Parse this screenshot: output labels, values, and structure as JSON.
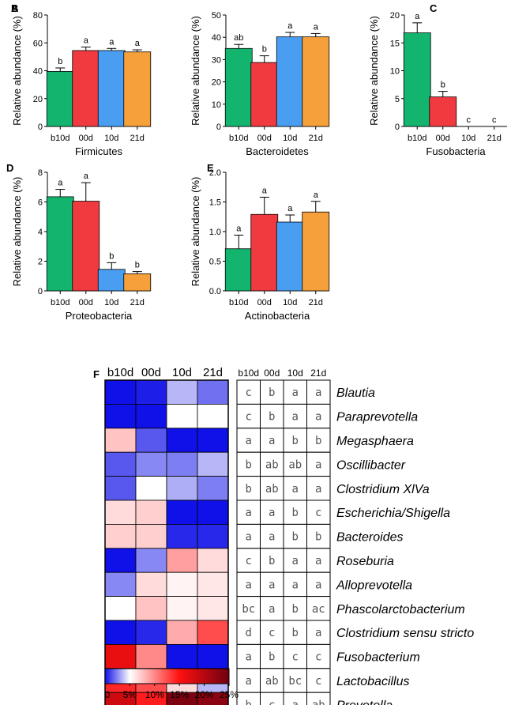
{
  "colors": {
    "b10d": "#13b56e",
    "00d": "#f03a40",
    "10d": "#4a9ef2",
    "21d": "#f5a03a",
    "heat_low": "#1010e8",
    "heat_mid": "#ffffff",
    "heat_high": "#6e0010"
  },
  "chart_data": [
    {
      "type": "bar",
      "panel": "A",
      "title": "",
      "xlabel": "Firmicutes",
      "ylabel": "Relative abundance (%)",
      "categories": [
        "b10d",
        "00d",
        "10d",
        "21d"
      ],
      "values": [
        39.5,
        54.5,
        54.5,
        53.5
      ],
      "errors": [
        2.5,
        2.5,
        1.5,
        1.5
      ],
      "letters": [
        "b",
        "a",
        "a",
        "a"
      ],
      "ylim": [
        0,
        80
      ],
      "yticks": [
        "0",
        "20",
        "40",
        "60",
        "80"
      ]
    },
    {
      "type": "bar",
      "panel": "B",
      "title": "",
      "xlabel": "Bacteroidetes",
      "ylabel": "Relative abundance (%)",
      "categories": [
        "b10d",
        "00d",
        "10d",
        "21d"
      ],
      "values": [
        35,
        28.7,
        40.2,
        40.2
      ],
      "errors": [
        1.8,
        3.0,
        2.0,
        1.5
      ],
      "letters": [
        "ab",
        "b",
        "a",
        "a"
      ],
      "ylim": [
        0,
        50
      ],
      "yticks": [
        "0",
        "10",
        "20",
        "30",
        "40",
        "50"
      ]
    },
    {
      "type": "bar",
      "panel": "C",
      "title": "",
      "xlabel": "Fusobacteria",
      "ylabel": "Relative abundance (%)",
      "categories": [
        "b10d",
        "00d",
        "10d",
        "21d"
      ],
      "values": [
        16.8,
        5.3,
        0,
        0
      ],
      "errors": [
        1.8,
        1.0,
        0,
        0
      ],
      "letters": [
        "a",
        "b",
        "c",
        "c"
      ],
      "ylim": [
        0,
        20
      ],
      "yticks": [
        "0",
        "5",
        "10",
        "15",
        "20"
      ]
    },
    {
      "type": "bar",
      "panel": "D",
      "title": "",
      "xlabel": "Proteobacteria",
      "ylabel": "Relative abundance (%)",
      "categories": [
        "b10d",
        "00d",
        "10d",
        "21d"
      ],
      "values": [
        6.35,
        6.05,
        1.45,
        1.15
      ],
      "errors": [
        0.5,
        1.25,
        0.45,
        0.15
      ],
      "letters": [
        "a",
        "a",
        "b",
        "b"
      ],
      "ylim": [
        0,
        8
      ],
      "yticks": [
        "0",
        "2",
        "4",
        "6",
        "8"
      ]
    },
    {
      "type": "bar",
      "panel": "E",
      "title": "",
      "xlabel": "Actinobacteria",
      "ylabel": "Relative abundance (%)",
      "categories": [
        "b10d",
        "00d",
        "10d",
        "21d"
      ],
      "values": [
        0.71,
        1.29,
        1.16,
        1.33
      ],
      "errors": [
        0.23,
        0.29,
        0.12,
        0.18
      ],
      "letters": [
        "a",
        "a",
        "a",
        "a"
      ],
      "ylim": [
        0,
        2.0
      ],
      "yticks": [
        "0.0",
        "0.5",
        "1.0",
        "1.5",
        "2.0"
      ]
    },
    {
      "type": "heatmap",
      "panel": "F",
      "columns": [
        "b10d",
        "00d",
        "10d",
        "21d"
      ],
      "rows": [
        "Blautia",
        "Paraprevotella",
        "Megasphaera",
        "Oscillibacter",
        "Clostridium XlVa",
        "Escherichia/Shigella",
        "Bacteroides",
        "Roseburia",
        "Alloprevotella",
        "Phascolarctobacterium",
        "Clostridium sensu stricto",
        "Fusobacterium",
        "Lactobacillus",
        "Prevotella"
      ],
      "values": [
        [
          0.0,
          0.3,
          3.5,
          2.0
        ],
        [
          0.0,
          0.0,
          5.0,
          5.0
        ],
        [
          7.5,
          1.5,
          0.0,
          0.0
        ],
        [
          1.5,
          2.5,
          2.3,
          3.5
        ],
        [
          1.5,
          5.0,
          3.3,
          2.3
        ],
        [
          6.5,
          7.0,
          0.0,
          0.0
        ],
        [
          7.0,
          7.0,
          0.5,
          0.5
        ],
        [
          0.0,
          2.5,
          9.0,
          6.5
        ],
        [
          2.5,
          6.5,
          5.5,
          6.0
        ],
        [
          5.0,
          7.5,
          5.5,
          6.0
        ],
        [
          0.0,
          0.5,
          8.5,
          12.5
        ],
        [
          16.5,
          10.0,
          0.0,
          0.0
        ],
        [
          14.0,
          12.5,
          6.5,
          3.5
        ],
        [
          18.5,
          14.5,
          24.0,
          23.0
        ]
      ],
      "letters": [
        [
          "c",
          "b",
          "a",
          "a"
        ],
        [
          "c",
          "b",
          "a",
          "a"
        ],
        [
          "a",
          "a",
          "b",
          "b"
        ],
        [
          "b",
          "ab",
          "ab",
          "a"
        ],
        [
          "b",
          "ab",
          "a",
          "a"
        ],
        [
          "a",
          "a",
          "b",
          "c"
        ],
        [
          "a",
          "a",
          "b",
          "b"
        ],
        [
          "c",
          "b",
          "a",
          "a"
        ],
        [
          "a",
          "a",
          "a",
          "a"
        ],
        [
          "bc",
          "a",
          "b",
          "ac"
        ],
        [
          "d",
          "c",
          "b",
          "a"
        ],
        [
          "a",
          "b",
          "c",
          "c"
        ],
        [
          "a",
          "ab",
          "bc",
          "c"
        ],
        [
          "b",
          "c",
          "a",
          "ab"
        ]
      ],
      "colorbar": {
        "range": [
          0,
          25
        ],
        "mid": 5,
        "tick_labels": [
          "0",
          "5%",
          "10%",
          "15%",
          "20%",
          "25%"
        ]
      }
    }
  ]
}
